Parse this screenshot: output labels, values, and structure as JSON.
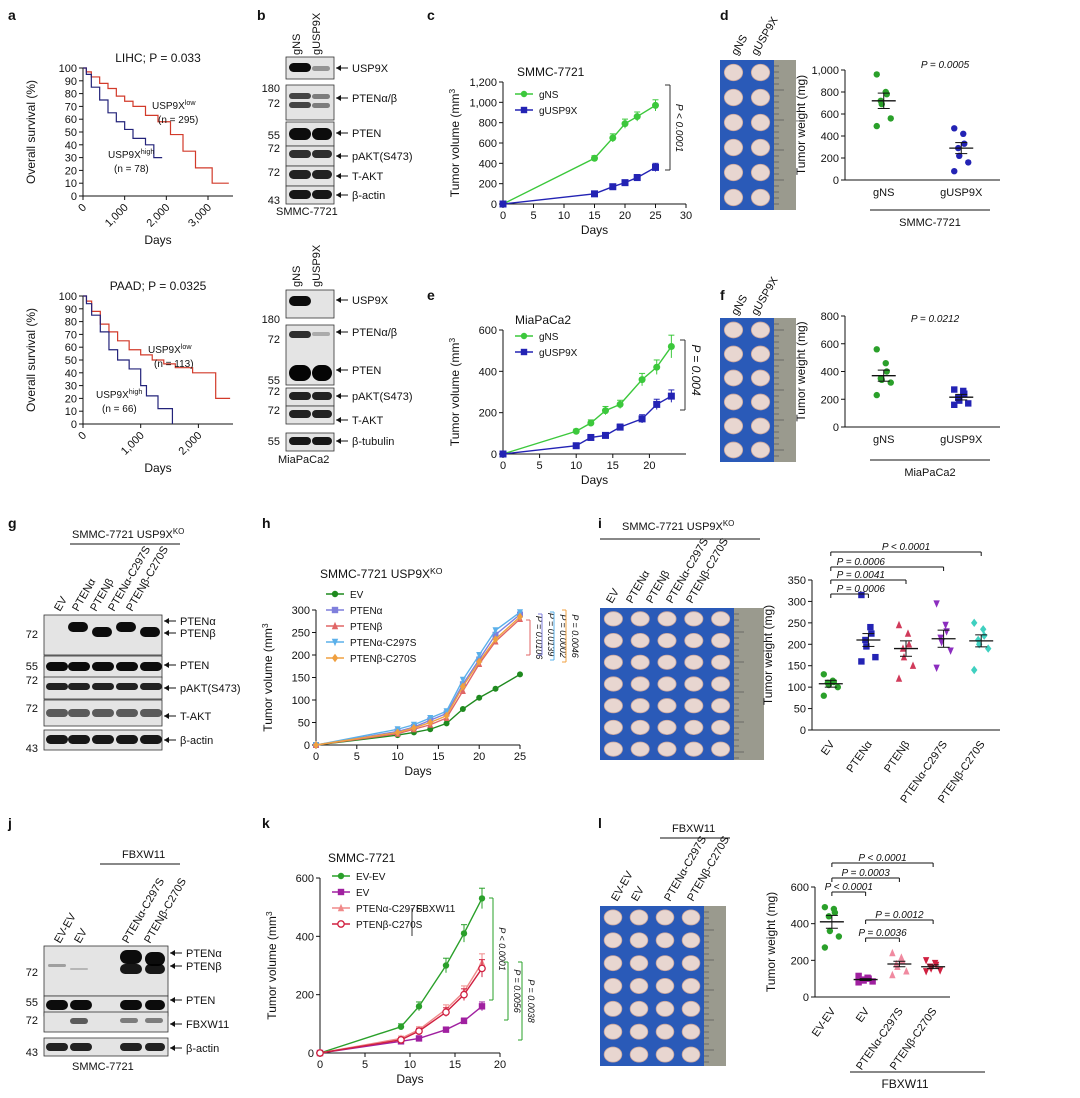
{
  "panels": {
    "a": "a",
    "b": "b",
    "c": "c",
    "d": "d",
    "e": "e",
    "f": "f",
    "g": "g",
    "h": "h",
    "i": "i",
    "j": "j",
    "k": "k",
    "l": "l"
  },
  "a1": {
    "title": "LIHC; P = 0.033",
    "ylabel": "Overall survival (%)",
    "xlabel": "Days",
    "yticks": [
      "0",
      "10",
      "20",
      "30",
      "40",
      "50",
      "60",
      "70",
      "80",
      "90",
      "100"
    ],
    "xticks": [
      "0",
      "1,000",
      "2,000",
      "3,000"
    ],
    "low_label": "USP9X",
    "low_sup": "low",
    "low_n": "(n = 295)",
    "high_label": "USP9X",
    "high_sup": "high",
    "high_n": "(n = 78)"
  },
  "a2": {
    "title": "PAAD; P = 0.0325",
    "ylabel": "Overall survival (%)",
    "xlabel": "Days",
    "yticks": [
      "0",
      "10",
      "20",
      "30",
      "40",
      "50",
      "60",
      "70",
      "80",
      "90",
      "100"
    ],
    "xticks": [
      "0",
      "1,000",
      "2,000"
    ],
    "low_label": "USP9X",
    "low_sup": "low",
    "low_n": "(n = 113)",
    "high_label": "USP9X",
    "high_sup": "high",
    "high_n": "(n = 66)"
  },
  "b1": {
    "lanes": [
      "gNS",
      "gUSP9X"
    ],
    "bands": [
      "USP9X",
      "PTENα/β",
      "PTEN",
      "pAKT(S473)",
      "T-AKT",
      "β-actin"
    ],
    "mw": [
      "180",
      "72",
      "55",
      "72",
      "72",
      "43"
    ],
    "cell": "SMMC-7721"
  },
  "b2": {
    "lanes": [
      "gNS",
      "gUSP9X"
    ],
    "bands": [
      "USP9X",
      "PTENα/β",
      "PTEN",
      "pAKT(S473)",
      "T-AKT",
      "β-tubulin"
    ],
    "mw": [
      "180",
      "72",
      "55",
      "72",
      "72",
      "55"
    ],
    "cell": "MiaPaCa2"
  },
  "c": {
    "title": "SMMC-7721",
    "p": "P < 0.0001"
  },
  "e": {
    "title": "MiaPaCa2",
    "p": "P = 0.004"
  },
  "d": {
    "lanes": [
      "gNS",
      "gUSP9X"
    ],
    "p": "P = 0.0005",
    "cell": "SMMC-7721"
  },
  "f": {
    "lanes": [
      "gNS",
      "gUSP9X"
    ],
    "p": "P = 0.0212",
    "cell": "MiaPaCa2"
  },
  "g": {
    "header": "SMMC-7721 USP9X",
    "header_sup": "KO",
    "lanes": [
      "EV",
      "PTENα",
      "PTENβ",
      "PTENα-C297S",
      "PTENβ-C270S"
    ],
    "bands": [
      "PTENα",
      "PTENβ",
      "PTEN",
      "pAKT(S473)",
      "T-AKT",
      "β-actin"
    ],
    "mw": [
      "72",
      "55",
      "72",
      "72",
      "43"
    ]
  },
  "h": {
    "title": "SMMC-7721 USP9X",
    "title_sup": "KO",
    "pvals": [
      "P = 0.0106",
      "P = 0.0139",
      "P = 0.0002",
      "P = 0.0046"
    ]
  },
  "i": {
    "header": "SMMC-7721 USP9X",
    "header_sup": "KO",
    "lanes": [
      "EV",
      "PTENα",
      "PTENβ",
      "PTENα-C297S",
      "PTENβ-C270S"
    ],
    "pvals": [
      "P < 0.0001",
      "P = 0.0006",
      "P = 0.0041",
      "P = 0.0006"
    ]
  },
  "j": {
    "header": "FBXW11",
    "lanes": [
      "EV-EV",
      "EV",
      "PTENα-C297S",
      "PTENβ-C270S"
    ],
    "bands": [
      "PTENα",
      "PTENβ",
      "PTEN",
      "FBXW11",
      "β-actin"
    ],
    "mw": [
      "72",
      "55",
      "72",
      "43"
    ],
    "cell": "SMMC-7721"
  },
  "k": {
    "title": "SMMC-7721",
    "bracket": "FBXW11",
    "pvals": [
      "P < 0.0001",
      "P = 0.0056",
      "P = 0.0038"
    ]
  },
  "l": {
    "header": "FBXW11",
    "lanes": [
      "EV-EV",
      "EV",
      "PTENα-C297S",
      "PTENβ-C270S"
    ],
    "pvals": [
      "P < 0.0001",
      "P = 0.0003",
      "P < 0.0001",
      "P = 0.0012",
      "P = 0.0036"
    ],
    "group": "FBXW11"
  },
  "chart_data": [
    {
      "panel": "c",
      "type": "line",
      "title": "SMMC-7721",
      "xlabel": "Days",
      "ylabel": "Tumor volume (mm3)",
      "xlim": [
        0,
        30
      ],
      "ylim": [
        0,
        1200
      ],
      "xticks": [
        0,
        5,
        10,
        15,
        20,
        25,
        30
      ],
      "yticks": [
        0,
        200,
        400,
        600,
        800,
        1000,
        1200
      ],
      "ytick_labels": [
        "0",
        "200",
        "400",
        "600",
        "800",
        "1,000",
        "1,200"
      ],
      "legend": "top-left",
      "series": [
        {
          "name": "gNS",
          "color": "#3cc83c",
          "marker": "circle",
          "x": [
            0,
            15,
            18,
            20,
            22,
            25
          ],
          "y": [
            0,
            450,
            650,
            790,
            860,
            970
          ],
          "err": [
            0,
            25,
            40,
            45,
            45,
            55
          ]
        },
        {
          "name": "gUSP9X",
          "color": "#2323b4",
          "marker": "square",
          "x": [
            0,
            15,
            18,
            20,
            22,
            25
          ],
          "y": [
            0,
            100,
            170,
            210,
            260,
            360
          ],
          "err": [
            0,
            20,
            25,
            25,
            30,
            40
          ]
        }
      ]
    },
    {
      "panel": "e",
      "type": "line",
      "title": "MiaPaCa2",
      "xlabel": "Days",
      "ylabel": "Tumor volume (mm3)",
      "xlim": [
        0,
        25
      ],
      "ylim": [
        0,
        600
      ],
      "xticks": [
        0,
        5,
        10,
        15,
        20
      ],
      "yticks": [
        0,
        200,
        400,
        600
      ],
      "legend": "top-left",
      "series": [
        {
          "name": "gNS",
          "color": "#3cc83c",
          "marker": "circle",
          "x": [
            0,
            10,
            12,
            14,
            16,
            19,
            21,
            23
          ],
          "y": [
            0,
            110,
            150,
            210,
            240,
            360,
            420,
            520
          ],
          "err": [
            0,
            10,
            15,
            20,
            20,
            30,
            35,
            55
          ]
        },
        {
          "name": "gUSP9X",
          "color": "#2323b4",
          "marker": "square",
          "x": [
            0,
            10,
            12,
            14,
            16,
            19,
            21,
            23
          ],
          "y": [
            0,
            40,
            80,
            90,
            130,
            170,
            240,
            280
          ],
          "err": [
            0,
            8,
            10,
            12,
            15,
            20,
            25,
            30
          ]
        }
      ]
    },
    {
      "panel": "d",
      "type": "scatter",
      "xlabel": "SMMC-7721",
      "ylabel": "Tumor weight (mg)",
      "ylim": [
        0,
        1000
      ],
      "yticks": [
        0,
        200,
        400,
        600,
        800,
        1000
      ],
      "ytick_labels": [
        "0",
        "200",
        "400",
        "600",
        "800",
        "1,000"
      ],
      "categories": [
        "gNS",
        "gUSP9X"
      ],
      "colors": [
        "#2aa02a",
        "#2323b4"
      ],
      "points": [
        [
          960,
          800,
          780,
          720,
          690,
          560,
          490
        ],
        [
          470,
          420,
          330,
          290,
          220,
          160,
          80
        ]
      ],
      "mean": [
        720,
        290
      ],
      "sem": [
        70,
        50
      ]
    },
    {
      "panel": "f",
      "type": "scatter",
      "xlabel": "MiaPaCa2",
      "ylabel": "Tumor weight (mg)",
      "ylim": [
        0,
        800
      ],
      "yticks": [
        0,
        200,
        400,
        600,
        800
      ],
      "categories": [
        "gNS",
        "gUSP9X"
      ],
      "colors": [
        "#2aa02a",
        "#2323b4"
      ],
      "points": [
        [
          560,
          460,
          400,
          350,
          340,
          320,
          230
        ],
        [
          270,
          260,
          240,
          210,
          190,
          170,
          160
        ]
      ],
      "mean": [
        370,
        215
      ],
      "sem": [
        40,
        20
      ]
    },
    {
      "panel": "h",
      "type": "line",
      "title": "SMMC-7721 USP9XKO",
      "xlabel": "Days",
      "ylabel": "Tumor volume (mm3)",
      "xlim": [
        0,
        25
      ],
      "ylim": [
        0,
        300
      ],
      "xticks": [
        0,
        5,
        10,
        15,
        20,
        25
      ],
      "yticks": [
        0,
        50,
        100,
        150,
        200,
        250,
        300
      ],
      "legend": "top-left",
      "series": [
        {
          "name": "EV",
          "color": "#1f8a1f",
          "marker": "circle",
          "x": [
            0,
            10,
            12,
            14,
            16,
            18,
            20,
            22,
            25
          ],
          "y": [
            0,
            22,
            28,
            35,
            48,
            80,
            105,
            125,
            157
          ]
        },
        {
          "name": "PTENα",
          "color": "#7f7fdc",
          "marker": "square",
          "x": [
            0,
            10,
            12,
            14,
            16,
            18,
            20,
            22,
            25
          ],
          "y": [
            0,
            30,
            40,
            55,
            70,
            135,
            190,
            245,
            290
          ]
        },
        {
          "name": "PTENβ",
          "color": "#e06666",
          "marker": "triangle",
          "x": [
            0,
            10,
            12,
            14,
            16,
            18,
            20,
            22,
            25
          ],
          "y": [
            0,
            25,
            35,
            45,
            60,
            120,
            180,
            230,
            280
          ]
        },
        {
          "name": "PTENα-C297S",
          "color": "#5bb0ea",
          "marker": "triangle-down",
          "x": [
            0,
            10,
            12,
            14,
            16,
            18,
            20,
            22,
            25
          ],
          "y": [
            0,
            35,
            45,
            60,
            75,
            145,
            200,
            255,
            295
          ]
        },
        {
          "name": "PTENβ-C270S",
          "color": "#f0a040",
          "marker": "diamond",
          "x": [
            0,
            10,
            12,
            14,
            16,
            18,
            20,
            22,
            25
          ],
          "y": [
            0,
            28,
            38,
            50,
            65,
            130,
            185,
            235,
            285
          ]
        }
      ]
    },
    {
      "panel": "i",
      "type": "scatter",
      "ylabel": "Tumor weight (mg)",
      "ylim": [
        0,
        350
      ],
      "yticks": [
        0,
        50,
        100,
        150,
        200,
        250,
        300,
        350
      ],
      "categories": [
        "EV",
        "PTENα",
        "PTENβ",
        "PTENα-C297S",
        "PTENβ-C270S"
      ],
      "colors": [
        "#2aa02a",
        "#2323b4",
        "#d03a5a",
        "#8c2dbf",
        "#3fd0c0"
      ],
      "points": [
        [
          130,
          115,
          112,
          110,
          105,
          100,
          80
        ],
        [
          315,
          240,
          225,
          210,
          195,
          170,
          160
        ],
        [
          245,
          225,
          200,
          190,
          170,
          150,
          120
        ],
        [
          295,
          245,
          230,
          215,
          205,
          185,
          145
        ],
        [
          250,
          235,
          220,
          210,
          200,
          190,
          140
        ]
      ],
      "mean": [
        108,
        210,
        190,
        213,
        208
      ],
      "sem": [
        8,
        15,
        18,
        20,
        14
      ]
    },
    {
      "panel": "k",
      "type": "line",
      "title": "SMMC-7721",
      "xlabel": "Days",
      "ylabel": "Tumor volume (mm3)",
      "xlim": [
        0,
        20
      ],
      "ylim": [
        0,
        600
      ],
      "xticks": [
        0,
        5,
        10,
        15,
        20
      ],
      "yticks": [
        0,
        200,
        400,
        600
      ],
      "legend": "top-left",
      "series": [
        {
          "name": "EV-EV",
          "color": "#2aa02a",
          "marker": "circle",
          "x": [
            0,
            9,
            11,
            14,
            16,
            18
          ],
          "y": [
            0,
            90,
            160,
            300,
            410,
            530
          ],
          "err": [
            0,
            10,
            15,
            25,
            30,
            35
          ]
        },
        {
          "name": "EV",
          "color": "#a020a0",
          "marker": "square",
          "x": [
            0,
            9,
            11,
            14,
            16,
            18
          ],
          "y": [
            0,
            40,
            50,
            80,
            110,
            160
          ],
          "err": [
            0,
            5,
            5,
            8,
            10,
            15
          ]
        },
        {
          "name": "PTENα-C297S",
          "color": "#f08a8a",
          "marker": "triangle",
          "x": [
            0,
            9,
            11,
            14,
            16,
            18
          ],
          "y": [
            0,
            50,
            80,
            150,
            210,
            310
          ],
          "err": [
            0,
            8,
            10,
            15,
            20,
            30
          ]
        },
        {
          "name": "PTENβ-C270S",
          "color": "#d02040",
          "marker": "circle-open",
          "x": [
            0,
            9,
            11,
            14,
            16,
            18
          ],
          "y": [
            0,
            45,
            75,
            140,
            200,
            290
          ],
          "err": [
            0,
            8,
            10,
            15,
            20,
            30
          ]
        }
      ]
    },
    {
      "panel": "l",
      "type": "scatter",
      "ylabel": "Tumor weight (mg)",
      "ylim": [
        0,
        600
      ],
      "yticks": [
        0,
        200,
        400,
        600
      ],
      "categories": [
        "EV-EV",
        "EV",
        "PTENα-C297S",
        "PTENβ-C270S"
      ],
      "colors": [
        "#2aa02a",
        "#a020a0",
        "#f08aa0",
        "#d02040"
      ],
      "points": [
        [
          490,
          480,
          460,
          440,
          360,
          330,
          270
        ],
        [
          115,
          105,
          100,
          95,
          90,
          85,
          80
        ],
        [
          240,
          215,
          200,
          180,
          165,
          140,
          120
        ],
        [
          200,
          185,
          175,
          165,
          155,
          145,
          140
        ]
      ],
      "mean": [
        410,
        95,
        180,
        165
      ],
      "sem": [
        35,
        5,
        15,
        10
      ]
    }
  ]
}
